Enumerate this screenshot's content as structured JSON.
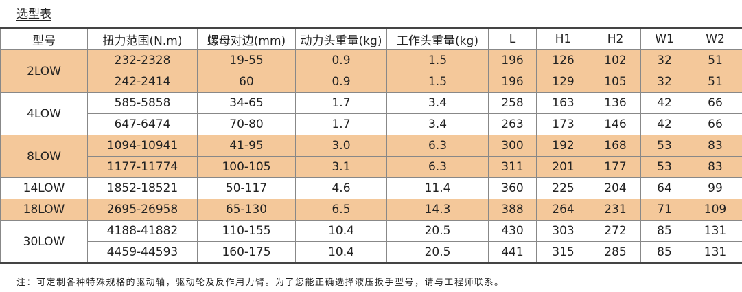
{
  "title": "选型表",
  "headers": [
    "型号",
    "扭力范围(N.m)",
    "螺母对边(mm)",
    "动力头重量(kg)",
    "工作头重量(kg)",
    "L",
    "H1",
    "H2",
    "W1",
    "W2"
  ],
  "groups": [
    {
      "model": "2LOW",
      "highlight": true,
      "rows": [
        [
          "232-2328",
          "19-55",
          "0.9",
          "1.5",
          "196",
          "126",
          "102",
          "32",
          "51"
        ],
        [
          "242-2414",
          "60",
          "0.9",
          "1.5",
          "196",
          "129",
          "105",
          "32",
          "51"
        ]
      ]
    },
    {
      "model": "4LOW",
      "highlight": false,
      "rows": [
        [
          "585-5858",
          "34-65",
          "1.7",
          "3.4",
          "258",
          "163",
          "136",
          "42",
          "66"
        ],
        [
          "647-6474",
          "70-80",
          "1.7",
          "3.4",
          "263",
          "173",
          "146",
          "42",
          "66"
        ]
      ]
    },
    {
      "model": "8LOW",
      "highlight": true,
      "rows": [
        [
          "1094-10941",
          "41-95",
          "3.0",
          "6.3",
          "300",
          "192",
          "168",
          "53",
          "83"
        ],
        [
          "1177-11774",
          "100-105",
          "3.1",
          "6.3",
          "311",
          "201",
          "177",
          "53",
          "83"
        ]
      ]
    },
    {
      "model": "14LOW",
      "highlight": false,
      "rows": [
        [
          "1852-18521",
          "50-117",
          "4.6",
          "11.4",
          "360",
          "225",
          "204",
          "64",
          "99"
        ]
      ]
    },
    {
      "model": "18LOW",
      "highlight": true,
      "rows": [
        [
          "2695-26958",
          "65-130",
          "6.5",
          "14.3",
          "388",
          "264",
          "231",
          "71",
          "109"
        ]
      ]
    },
    {
      "model": "30LOW",
      "highlight": false,
      "rows": [
        [
          "4188-41882",
          "110-155",
          "10.4",
          "20.5",
          "430",
          "303",
          "272",
          "85",
          "131"
        ],
        [
          "4459-44593",
          "160-175",
          "10.4",
          "20.5",
          "441",
          "315",
          "285",
          "85",
          "131"
        ]
      ]
    }
  ],
  "note": "注：可定制各种特殊规格的驱动轴，驱动轮及反作用力臂。为了您能正确选择液压扳手型号，请与工程师联系。",
  "colors": {
    "highlight": "#f4c89a"
  }
}
